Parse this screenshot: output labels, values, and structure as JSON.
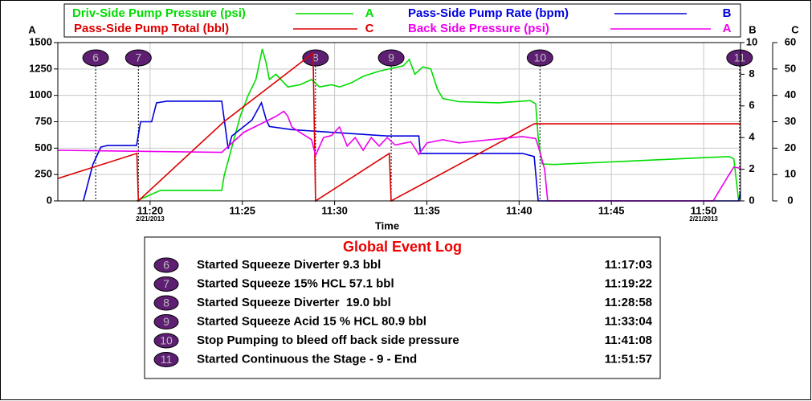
{
  "chart_data": {
    "type": "line",
    "ylabel": "A",
    "y2label": "B",
    "y3label": "C",
    "xlabel": "Time",
    "xlim": [
      "11:15",
      "11:52"
    ],
    "xticks": [
      "11:20",
      "11:25",
      "11:30",
      "11:35",
      "11:40",
      "11:45",
      "11:50"
    ],
    "annotations": [
      {
        "x": "11:20",
        "text": "2/21/2013"
      },
      {
        "x": "11:50",
        "text": "2/21/2013"
      }
    ],
    "ylim": [
      0,
      1500
    ],
    "yticks": [
      0,
      250,
      500,
      750,
      1000,
      1250,
      1500
    ],
    "y2lim": [
      0,
      10
    ],
    "y2ticks": [
      0,
      2,
      4,
      6,
      8,
      10
    ],
    "y3lim": [
      0,
      60
    ],
    "y3ticks": [
      0,
      10,
      20,
      30,
      40,
      50,
      60
    ],
    "grid": true,
    "series": [
      {
        "name": "Driv-Side Pump Pressure (psi)",
        "color": "#00dd00",
        "axis": "y",
        "x": [
          "11:19:16",
          "11:19:55",
          "11:20:34",
          "11:23:53",
          "11:24:01",
          "11:24:53",
          "11:25:19",
          "11:25:44",
          "11:26:05",
          "11:26:18",
          "11:26:28",
          "11:26:49",
          "11:27:28",
          "11:28:07",
          "11:28:45",
          "11:29:11",
          "11:29:50",
          "11:30:16",
          "11:30:55",
          "11:31:33",
          "11:32:25",
          "11:33:43",
          "11:34:03",
          "11:34:21",
          "11:34:47",
          "11:35:13",
          "11:35:34",
          "11:35:52",
          "11:36:44",
          "11:38:53",
          "11:40:36",
          "11:40:54",
          "11:41:02",
          "11:41:15",
          "11:41:54",
          "11:51:23",
          "11:51:38",
          "11:51:54"
        ],
        "values": [
          0,
          50,
          100,
          100,
          240,
          800,
          1000,
          1150,
          1440,
          1300,
          1150,
          1200,
          1080,
          1100,
          1150,
          1080,
          1100,
          1080,
          1120,
          1180,
          1230,
          1280,
          1340,
          1200,
          1270,
          1250,
          1060,
          970,
          940,
          930,
          950,
          920,
          600,
          350,
          345,
          420,
          400,
          0
        ]
      },
      {
        "name": "Pass-Side Pump Rate (bpm)",
        "color": "#0000dd",
        "axis": "y2",
        "x": [
          "11:16:23",
          "11:16:54",
          "11:17:20",
          "11:17:41",
          "11:19:16",
          "11:19:29",
          "11:20:05",
          "11:20:21",
          "11:20:55",
          "11:23:53",
          "11:24:14",
          "11:24:26",
          "11:25:31",
          "11:26:02",
          "11:26:18",
          "11:26:28",
          "11:27:41",
          "11:28:58",
          "11:32:51",
          "11:34:34",
          "11:34:39",
          "11:40:11",
          "11:40:49",
          "11:41:02",
          "11:51:54",
          "11:52:00"
        ],
        "values": [
          0,
          2.3,
          3.4,
          3.5,
          3.5,
          5.0,
          5.0,
          6.2,
          6.3,
          6.3,
          3.3,
          4.1,
          5.1,
          6.2,
          5.1,
          4.7,
          4.5,
          4.4,
          4.1,
          4.1,
          3.0,
          3.0,
          2.8,
          0,
          0,
          0.6
        ]
      },
      {
        "name": "Pass-Side Pump Total (bbl)",
        "color": "#dd0000",
        "axis": "y3",
        "x": [
          "11:15:00",
          "11:19:17",
          "11:19:22",
          "11:24:00",
          "11:28:50",
          "11:28:58",
          "11:32:58",
          "11:33:04",
          "11:40:49",
          "11:52:00"
        ],
        "values": [
          8.5,
          18,
          0,
          30,
          56,
          0,
          18,
          0,
          29.2,
          29.2
        ]
      },
      {
        "name": "Back Side Pressure (psi)",
        "color": "#ee00ee",
        "axis": "y",
        "x": [
          "11:15:00",
          "11:23:53",
          "11:25:05",
          "11:26:49",
          "11:27:15",
          "11:27:28",
          "11:27:41",
          "11:28:07",
          "11:28:45",
          "11:28:58",
          "11:29:24",
          "11:29:50",
          "11:30:16",
          "11:30:41",
          "11:31:07",
          "11:31:33",
          "11:31:59",
          "11:32:25",
          "11:32:51",
          "11:33:17",
          "11:34:08",
          "11:34:34",
          "11:35:00",
          "11:35:52",
          "11:36:44",
          "11:38:27",
          "11:40:11",
          "11:40:54",
          "11:41:02",
          "11:41:23",
          "11:41:33",
          "11:50:31",
          "11:51:23",
          "11:51:38",
          "11:52:00"
        ],
        "values": [
          480,
          460,
          650,
          800,
          850,
          800,
          700,
          650,
          580,
          430,
          600,
          620,
          700,
          520,
          600,
          480,
          600,
          520,
          600,
          530,
          560,
          440,
          550,
          580,
          550,
          580,
          610,
          590,
          520,
          300,
          0,
          0,
          250,
          320,
          310
        ]
      }
    ]
  },
  "event_log": {
    "title": "Global Event Log",
    "events": [
      {
        "id": 6,
        "text": "Started Squeeze Diverter 9.3 bbl",
        "time": "11:17:03"
      },
      {
        "id": 7,
        "text": "Started Squeeze 15% HCL 57.1 bbl",
        "time": "11:19:22"
      },
      {
        "id": 8,
        "text": "Started Squeeze Diverter  19.0 bbl",
        "time": "11:28:58"
      },
      {
        "id": 9,
        "text": "Started Squeeze Acid 15 % HCL 80.9 bbl",
        "time": "11:33:04"
      },
      {
        "id": 10,
        "text": "Stop Pumping to bleed off back side pressure",
        "time": "11:41:08"
      },
      {
        "id": 11,
        "text": "Started Continuous the Stage - 9 - End",
        "time": "11:51:57"
      }
    ]
  }
}
